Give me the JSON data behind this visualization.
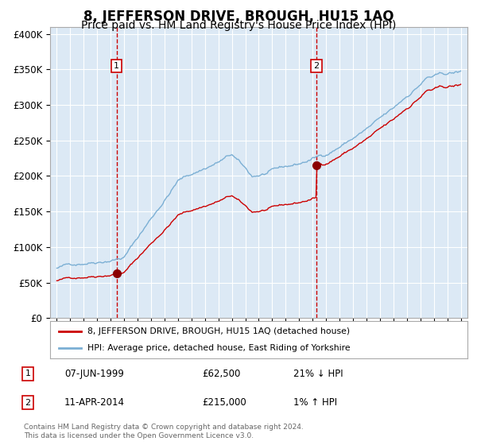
{
  "title": "8, JEFFERSON DRIVE, BROUGH, HU15 1AQ",
  "subtitle": "Price paid vs. HM Land Registry's House Price Index (HPI)",
  "title_fontsize": 12,
  "subtitle_fontsize": 10,
  "background_color": "#ffffff",
  "plot_bg_color": "#dce9f5",
  "grid_color": "#ffffff",
  "red_line_color": "#cc0000",
  "blue_line_color": "#7bafd4",
  "sale1_x": 1999.44,
  "sale1_y": 62500,
  "sale2_x": 2014.28,
  "sale2_y": 215000,
  "legend_line1": "8, JEFFERSON DRIVE, BROUGH, HU15 1AQ (detached house)",
  "legend_line2": "HPI: Average price, detached house, East Riding of Yorkshire",
  "table_row1": [
    "1",
    "07-JUN-1999",
    "£62,500",
    "21% ↓ HPI"
  ],
  "table_row2": [
    "2",
    "11-APR-2014",
    "£215,000",
    "1% ↑ HPI"
  ],
  "footer": "Contains HM Land Registry data © Crown copyright and database right 2024.\nThis data is licensed under the Open Government Licence v3.0.",
  "ylim": [
    0,
    410000
  ],
  "xlim_start": 1994.5,
  "xlim_end": 2025.5
}
